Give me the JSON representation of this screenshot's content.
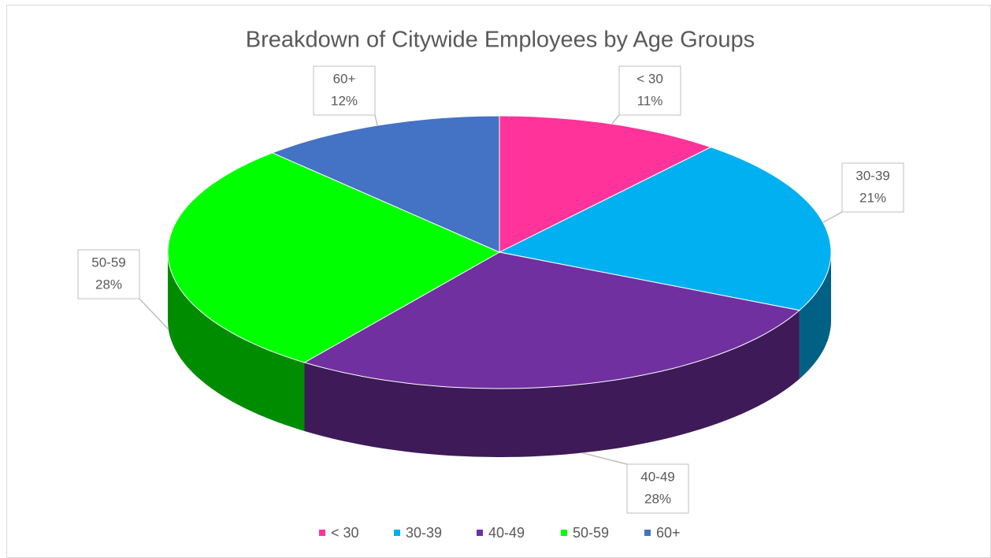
{
  "chart_data": {
    "type": "pie3d",
    "title": "Breakdown of Citywide Employees by Age Groups",
    "categories": [
      "< 30",
      "30-39",
      "40-49",
      "50-59",
      "60+"
    ],
    "values": [
      11,
      21,
      28,
      28,
      12
    ],
    "value_labels": [
      "11%",
      "21%",
      "28%",
      "28%",
      "12%"
    ],
    "colors": [
      "#ff3399",
      "#00b0f0",
      "#7030a0",
      "#00ff00",
      "#4472c4"
    ],
    "legend": "bottom"
  }
}
